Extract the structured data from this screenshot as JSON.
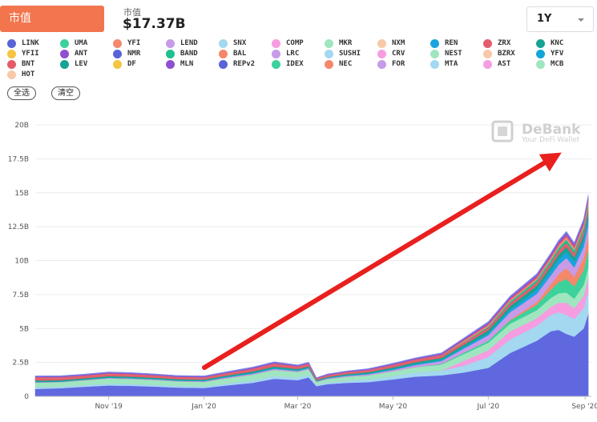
{
  "header": {
    "metric_tab": "市值",
    "summary_label": "市值",
    "summary_value": "$17.37B",
    "range": "1Y"
  },
  "legend": [
    {
      "label": "LINK",
      "color": "#5b63d9"
    },
    {
      "label": "UMA",
      "color": "#3dd19b"
    },
    {
      "label": "YFI",
      "color": "#f5886a"
    },
    {
      "label": "LEND",
      "color": "#c79be8"
    },
    {
      "label": "SNX",
      "color": "#a3d8f0"
    },
    {
      "label": "COMP",
      "color": "#f59de0"
    },
    {
      "label": "MKR",
      "color": "#9fe6c0"
    },
    {
      "label": "NXM",
      "color": "#f7c9a8"
    },
    {
      "label": "REN",
      "color": "#1ba3e0"
    },
    {
      "label": "ZRX",
      "color": "#e55d6b"
    },
    {
      "label": "KNC",
      "color": "#17a394"
    },
    {
      "label": "YFII",
      "color": "#f5c441"
    },
    {
      "label": "ANT",
      "color": "#8f4fd1"
    },
    {
      "label": "NMR",
      "color": "#5b63d9"
    },
    {
      "label": "BAND",
      "color": "#1fbf8f"
    },
    {
      "label": "BAL",
      "color": "#f5886a"
    },
    {
      "label": "LRC",
      "color": "#c79be8"
    },
    {
      "label": "SUSHI",
      "color": "#a3d8f0"
    },
    {
      "label": "CRV",
      "color": "#f59de0"
    },
    {
      "label": "NEST",
      "color": "#9fe6c0"
    },
    {
      "label": "BZRX",
      "color": "#f7c9a8"
    },
    {
      "label": "YFV",
      "color": "#13a6d8"
    },
    {
      "label": "BNT",
      "color": "#e55d6b"
    },
    {
      "label": "LEV",
      "color": "#17a394"
    },
    {
      "label": "DF",
      "color": "#f5c441"
    },
    {
      "label": "MLN",
      "color": "#8f4fd1"
    },
    {
      "label": "REPv2",
      "color": "#5b63d9"
    },
    {
      "label": "IDEX",
      "color": "#3dd19b"
    },
    {
      "label": "NEC",
      "color": "#f5886a"
    },
    {
      "label": "FOR",
      "color": "#c79be8"
    },
    {
      "label": "MTA",
      "color": "#a3d8f0"
    },
    {
      "label": "AST",
      "color": "#f59de0"
    },
    {
      "label": "MCB",
      "color": "#9fe6c0"
    },
    {
      "label": "HOT",
      "color": "#f7c9a8"
    }
  ],
  "actions": {
    "select_all": "全选",
    "clear": "清空"
  },
  "watermark": {
    "brand": "DeBank",
    "tagline": "Your DeFi Wallet"
  },
  "chart_data": {
    "type": "area",
    "stacked": true,
    "unit": "USD billions",
    "title": "",
    "xlabel": "",
    "ylabel": "",
    "ylim": [
      0,
      20
    ],
    "yticks": [
      0,
      2.5,
      5,
      7.5,
      10,
      12.5,
      15,
      17.5,
      20
    ],
    "ytick_labels": [
      "0",
      "2.5B",
      "5B",
      "7.5B",
      "10B",
      "12.5B",
      "15B",
      "17.5B",
      "20B"
    ],
    "xticks": [
      "Nov '19",
      "Jan '20",
      "Mar '20",
      "May '20",
      "Jul '20",
      "Sep '20"
    ],
    "x": [
      "2019-09-15",
      "2019-10-01",
      "2019-10-15",
      "2019-11-01",
      "2019-11-15",
      "2019-12-01",
      "2019-12-15",
      "2020-01-01",
      "2020-01-15",
      "2020-02-01",
      "2020-02-15",
      "2020-03-01",
      "2020-03-08",
      "2020-03-13",
      "2020-03-20",
      "2020-04-01",
      "2020-04-15",
      "2020-05-01",
      "2020-05-15",
      "2020-06-01",
      "2020-06-15",
      "2020-07-01",
      "2020-07-15",
      "2020-08-01",
      "2020-08-10",
      "2020-08-15",
      "2020-08-20",
      "2020-08-25",
      "2020-08-31",
      "2020-09-03"
    ],
    "series": [
      {
        "name": "LINK",
        "color": "#6068e0",
        "values": [
          0.55,
          0.6,
          0.7,
          0.8,
          0.78,
          0.72,
          0.65,
          0.62,
          0.8,
          1.0,
          1.3,
          1.2,
          1.4,
          0.75,
          0.9,
          1.0,
          1.05,
          1.25,
          1.45,
          1.55,
          1.75,
          2.1,
          3.2,
          4.1,
          4.8,
          4.9,
          4.6,
          4.4,
          5.0,
          6.1
        ]
      },
      {
        "name": "SNX",
        "color": "#a3d8f0",
        "values": [
          0.12,
          0.12,
          0.13,
          0.14,
          0.14,
          0.13,
          0.12,
          0.12,
          0.15,
          0.18,
          0.2,
          0.2,
          0.2,
          0.12,
          0.13,
          0.15,
          0.2,
          0.25,
          0.3,
          0.35,
          0.5,
          0.8,
          1.0,
          1.1,
          1.2,
          1.3,
          1.4,
          1.3,
          1.5,
          1.6
        ]
      },
      {
        "name": "COMP",
        "color": "#f59de0",
        "values": [
          0,
          0,
          0,
          0,
          0,
          0,
          0,
          0,
          0,
          0,
          0,
          0,
          0,
          0,
          0,
          0,
          0,
          0,
          0,
          0,
          0.35,
          0.5,
          0.6,
          0.55,
          0.6,
          0.7,
          0.9,
          0.8,
          0.9,
          1.0
        ]
      },
      {
        "name": "MKR",
        "color": "#9fe6c0",
        "values": [
          0.35,
          0.33,
          0.35,
          0.38,
          0.37,
          0.36,
          0.34,
          0.33,
          0.38,
          0.42,
          0.45,
          0.4,
          0.4,
          0.2,
          0.25,
          0.3,
          0.3,
          0.35,
          0.4,
          0.45,
          0.5,
          0.55,
          0.55,
          0.6,
          0.65,
          0.7,
          0.75,
          0.7,
          0.8,
          0.85
        ]
      },
      {
        "name": "UMA",
        "color": "#3dd19b",
        "values": [
          0,
          0,
          0,
          0,
          0,
          0,
          0,
          0,
          0,
          0,
          0,
          0,
          0,
          0,
          0,
          0,
          0,
          0,
          0,
          0.05,
          0.1,
          0.15,
          0.25,
          0.4,
          0.6,
          0.8,
          1.0,
          0.9,
          1.1,
          1.2
        ]
      },
      {
        "name": "YFI",
        "color": "#f5886a",
        "values": [
          0,
          0,
          0,
          0,
          0,
          0,
          0,
          0,
          0,
          0,
          0,
          0,
          0,
          0,
          0,
          0,
          0,
          0,
          0,
          0,
          0,
          0,
          0.05,
          0.2,
          0.4,
          0.6,
          0.8,
          0.7,
          0.9,
          1.0
        ]
      },
      {
        "name": "LEND",
        "color": "#c79be8",
        "values": [
          0.03,
          0.03,
          0.03,
          0.04,
          0.04,
          0.04,
          0.04,
          0.05,
          0.06,
          0.07,
          0.08,
          0.07,
          0.07,
          0.04,
          0.05,
          0.06,
          0.08,
          0.1,
          0.15,
          0.2,
          0.3,
          0.4,
          0.55,
          0.6,
          0.65,
          0.7,
          0.75,
          0.7,
          0.8,
          0.9
        ]
      },
      {
        "name": "REN",
        "color": "#1ba3e0",
        "values": [
          0.02,
          0.02,
          0.02,
          0.03,
          0.03,
          0.03,
          0.03,
          0.03,
          0.04,
          0.05,
          0.05,
          0.05,
          0.05,
          0.03,
          0.03,
          0.04,
          0.05,
          0.06,
          0.07,
          0.08,
          0.1,
          0.15,
          0.2,
          0.3,
          0.35,
          0.4,
          0.45,
          0.42,
          0.48,
          0.52
        ]
      },
      {
        "name": "KNC",
        "color": "#17a394",
        "values": [
          0.1,
          0.09,
          0.09,
          0.1,
          0.1,
          0.09,
          0.09,
          0.09,
          0.1,
          0.11,
          0.12,
          0.1,
          0.1,
          0.06,
          0.07,
          0.08,
          0.1,
          0.12,
          0.14,
          0.15,
          0.18,
          0.22,
          0.25,
          0.3,
          0.32,
          0.33,
          0.34,
          0.32,
          0.35,
          0.36
        ]
      },
      {
        "name": "ZRX",
        "color": "#e55d6b",
        "values": [
          0.16,
          0.15,
          0.14,
          0.14,
          0.13,
          0.12,
          0.11,
          0.11,
          0.12,
          0.14,
          0.16,
          0.14,
          0.14,
          0.08,
          0.1,
          0.11,
          0.12,
          0.14,
          0.15,
          0.16,
          0.17,
          0.2,
          0.22,
          0.25,
          0.28,
          0.3,
          0.32,
          0.3,
          0.33,
          0.35
        ]
      },
      {
        "name": "BAND",
        "color": "#1fbf8f",
        "values": [
          0,
          0,
          0,
          0,
          0,
          0,
          0,
          0,
          0,
          0,
          0,
          0,
          0,
          0,
          0,
          0,
          0,
          0,
          0,
          0.02,
          0.04,
          0.08,
          0.12,
          0.18,
          0.2,
          0.22,
          0.24,
          0.22,
          0.25,
          0.27
        ]
      },
      {
        "name": "BAL",
        "color": "#f09a7a",
        "values": [
          0,
          0,
          0,
          0,
          0,
          0,
          0,
          0,
          0,
          0,
          0,
          0,
          0,
          0,
          0,
          0,
          0,
          0,
          0,
          0,
          0.06,
          0.08,
          0.09,
          0.1,
          0.12,
          0.14,
          0.16,
          0.15,
          0.17,
          0.18
        ]
      },
      {
        "name": "BNT",
        "color": "#e55d6b",
        "values": [
          0.08,
          0.08,
          0.07,
          0.07,
          0.07,
          0.06,
          0.06,
          0.06,
          0.06,
          0.07,
          0.07,
          0.06,
          0.06,
          0.04,
          0.04,
          0.05,
          0.05,
          0.06,
          0.06,
          0.07,
          0.08,
          0.1,
          0.12,
          0.14,
          0.15,
          0.16,
          0.17,
          0.16,
          0.18,
          0.19
        ]
      },
      {
        "name": "ANT",
        "color": "#8f4fd1",
        "values": [
          0.05,
          0.05,
          0.05,
          0.05,
          0.05,
          0.05,
          0.05,
          0.05,
          0.05,
          0.06,
          0.06,
          0.05,
          0.05,
          0.03,
          0.04,
          0.04,
          0.05,
          0.06,
          0.06,
          0.07,
          0.08,
          0.1,
          0.11,
          0.12,
          0.13,
          0.14,
          0.15,
          0.14,
          0.16,
          0.17
        ]
      },
      {
        "name": "NMR",
        "color": "#7a80e6",
        "values": [
          0.05,
          0.05,
          0.05,
          0.05,
          0.05,
          0.05,
          0.05,
          0.05,
          0.05,
          0.06,
          0.06,
          0.05,
          0.05,
          0.03,
          0.04,
          0.04,
          0.04,
          0.05,
          0.05,
          0.06,
          0.07,
          0.08,
          0.09,
          0.1,
          0.11,
          0.12,
          0.13,
          0.12,
          0.14,
          0.15
        ]
      }
    ]
  }
}
